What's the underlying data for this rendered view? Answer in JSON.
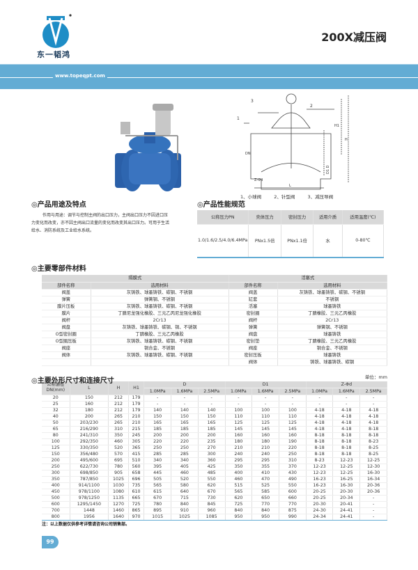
{
  "header": {
    "brand": "东一韬鸿",
    "title": "200X减压阀",
    "url": "www.topeqpt.com",
    "brand_color": "#1e8dc6",
    "band_color": "#63acd4"
  },
  "diagram": {
    "legend": [
      "1、小球阀",
      "2、针型阀",
      "3、减压导阀"
    ],
    "labels": {
      "h1": "H1",
      "h": "H",
      "l": "L",
      "dn": "DN",
      "d": "D1 D",
      "zd": "Z-Φd",
      "n1": "1",
      "n2": "2",
      "n3": "3"
    }
  },
  "usage": {
    "heading": "◎产品用途及特点",
    "text": "作用与用途：调节与控制主阀的出口压力，主阀出口压力不因进口压力变化而改变，亦不因主阀出口流量的变化而改变其出口压力。可用于生活给水、消防系统及工业给水系统。"
  },
  "performance": {
    "heading": "◎产品性能规范",
    "headers": [
      "公称压力PN",
      "壳体压力",
      "密封压力",
      "适用介质",
      "适用温度(℃)"
    ],
    "row": [
      "1.0/1.6/2.5/4.0/6.4MPa",
      "PNx1.5倍",
      "PNx1.1倍",
      "水",
      "0-80℃"
    ]
  },
  "parts": {
    "heading": "◎主要零部件材料",
    "left_type": "隔膜式",
    "right_type": "活塞式",
    "col_name": "部件名称",
    "col_material": "选用材料",
    "left": [
      [
        "阀盖",
        "灰铸铁、球墨铸铁、碳钢、不锈钢"
      ],
      [
        "弹簧",
        "弹簧钢、不锈钢"
      ],
      [
        "膜片压板",
        "灰铸铁、球墨铸铁、碳钢、不锈钢"
      ],
      [
        "膜片",
        "丁腈尼龙强化橡胶、三元乙丙尼龙强化橡胶"
      ],
      [
        "阀杆",
        "2Cr13"
      ],
      [
        "阀盘",
        "灰铸铁、球墨铸铁、碳钢、铜、不锈钢"
      ],
      [
        "O型密封圈",
        "丁腈橡胶、三元乙丙橡胶"
      ],
      [
        "O型圈压板",
        "灰铸铁、球墨铸铁、碳钢、不锈钢"
      ],
      [
        "阀座",
        "铜合金、不锈钢"
      ],
      [
        "阀体",
        "灰铸铁、球墨铸铁、碳钢、不锈钢"
      ],
      [
        "",
        ""
      ]
    ],
    "right": [
      [
        "阀盖",
        "灰铸铁、球墨铸铁、碳钢、不锈钢"
      ],
      [
        "缸套",
        "不锈钢"
      ],
      [
        "活塞",
        "球墨铸铁"
      ],
      [
        "密封圈",
        "丁腈橡胶、三元乙丙橡胶"
      ],
      [
        "阀杆",
        "2Cr13"
      ],
      [
        "弹簧",
        "弹簧钢、不锈钢"
      ],
      [
        "阀盘",
        "球墨铸铁"
      ],
      [
        "密封垫",
        "丁腈橡胶、三元乙丙橡胶"
      ],
      [
        "阀座",
        "铜合金、不锈钢"
      ],
      [
        "密封压板",
        "球墨铸铁"
      ],
      [
        "阀体",
        "铸铁、球墨铸铁、碳钢"
      ]
    ]
  },
  "dimensions": {
    "heading": "◎主要外形尺寸和连接尺寸",
    "unit": "单位：mm",
    "group_headers": [
      "公称通径DN(mm)",
      "L",
      "H",
      "H1",
      "D",
      "D1",
      "Z-Φd"
    ],
    "pressures": [
      "1.0MPa",
      "1.6MPa",
      "2.5MPa"
    ],
    "rows": [
      [
        "20",
        "150",
        "212",
        "179",
        "-",
        "-",
        "-",
        "-",
        "-",
        "-",
        "-",
        "-",
        "-"
      ],
      [
        "25",
        "160",
        "212",
        "179",
        "-",
        "-",
        "-",
        "-",
        "-",
        "-",
        "-",
        "-",
        "-"
      ],
      [
        "32",
        "180",
        "212",
        "179",
        "140",
        "140",
        "140",
        "100",
        "100",
        "100",
        "4-18",
        "4-18",
        "4-18"
      ],
      [
        "40",
        "200",
        "265",
        "210",
        "150",
        "150",
        "150",
        "110",
        "110",
        "110",
        "4-18",
        "4-18",
        "4-18"
      ],
      [
        "50",
        "203/230",
        "265",
        "210",
        "165",
        "165",
        "165",
        "125",
        "125",
        "125",
        "4-18",
        "4-18",
        "4-18"
      ],
      [
        "65",
        "216/290",
        "310",
        "215",
        "185",
        "185",
        "185",
        "145",
        "145",
        "145",
        "4-18",
        "4-18",
        "8-18"
      ],
      [
        "80",
        "241/310",
        "350",
        "245",
        "200",
        "200",
        "200",
        "160",
        "160",
        "160",
        "8-18",
        "8-18",
        "8-18"
      ],
      [
        "100",
        "292/350",
        "460",
        "305",
        "220",
        "220",
        "235",
        "180",
        "180",
        "190",
        "8-18",
        "8-18",
        "8-23"
      ],
      [
        "125",
        "330/350",
        "520",
        "365",
        "250",
        "250",
        "270",
        "210",
        "210",
        "220",
        "8-18",
        "8-18",
        "8-25"
      ],
      [
        "150",
        "356/480",
        "570",
        "415",
        "285",
        "285",
        "300",
        "240",
        "240",
        "250",
        "8-18",
        "8-18",
        "8-25"
      ],
      [
        "200",
        "495/600",
        "695",
        "510",
        "340",
        "340",
        "360",
        "295",
        "295",
        "310",
        "8-23",
        "12-23",
        "12-25"
      ],
      [
        "250",
        "622/730",
        "780",
        "560",
        "395",
        "405",
        "425",
        "350",
        "355",
        "370",
        "12-23",
        "12-25",
        "12-30"
      ],
      [
        "300",
        "698/850",
        "905",
        "658",
        "445",
        "460",
        "485",
        "400",
        "410",
        "430",
        "12-23",
        "12-25",
        "16-30"
      ],
      [
        "350",
        "787/850",
        "1025",
        "696",
        "505",
        "520",
        "550",
        "460",
        "470",
        "490",
        "16-23",
        "16-25",
        "16-34"
      ],
      [
        "400",
        "914/1100",
        "1030",
        "735",
        "565",
        "580",
        "620",
        "515",
        "525",
        "550",
        "16-23",
        "16-30",
        "20-36"
      ],
      [
        "450",
        "978/1100",
        "1080",
        "610",
        "615",
        "640",
        "670",
        "565",
        "585",
        "600",
        "20-25",
        "20-30",
        "20-36"
      ],
      [
        "500",
        "978/1250",
        "1135",
        "665",
        "670",
        "715",
        "730",
        "620",
        "650",
        "660",
        "20-25",
        "20-34",
        "-"
      ],
      [
        "600",
        "1295/1450",
        "1270",
        "725",
        "780",
        "840",
        "845",
        "725",
        "770",
        "770",
        "20-30",
        "20-41",
        "-"
      ],
      [
        "700",
        "1448",
        "1460",
        "865",
        "895",
        "910",
        "960",
        "840",
        "840",
        "875",
        "24-30",
        "24-41",
        "-"
      ],
      [
        "800",
        "1956",
        "1640",
        "970",
        "1015",
        "1025",
        "1085",
        "950",
        "950",
        "990",
        "24-34",
        "24-41",
        "-"
      ]
    ]
  },
  "note": "注：以上数据仅供参考详情请咨询公司销售部。",
  "page_number": "99"
}
